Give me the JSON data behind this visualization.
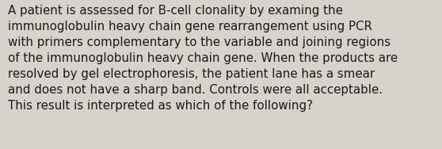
{
  "text": "A patient is assessed for B-cell clonality by examing the\nimmunoglobulin heavy chain gene rearrangement using PCR\nwith primers complementary to the variable and joining regions\nof the immunoglobulin heavy chain gene. When the products are\nresolved by gel electrophoresis, the patient lane has a smear\nand does not have a sharp band. Controls were all acceptable.\nThis result is interpreted as which of the following?",
  "background_color": "#d6d2cc",
  "text_color": "#1a1a1a",
  "font_size": 10.8,
  "fig_width": 5.58,
  "fig_height": 1.88,
  "dpi": 100
}
